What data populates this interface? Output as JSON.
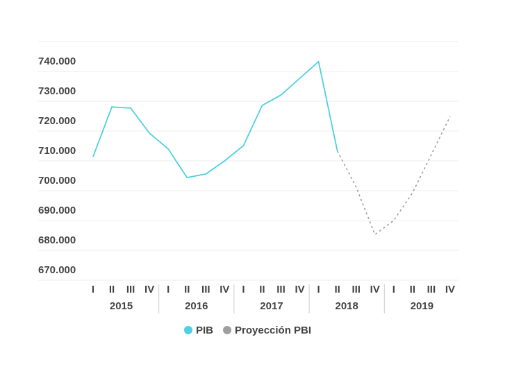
{
  "chart_data": {
    "type": "line",
    "categories": [
      "I",
      "II",
      "III",
      "IV",
      "I",
      "II",
      "III",
      "IV",
      "I",
      "II",
      "III",
      "IV",
      "I",
      "II",
      "III",
      "IV",
      "I",
      "II",
      "III",
      "IV"
    ],
    "years": [
      "2015",
      "2016",
      "2017",
      "2018",
      "2019"
    ],
    "series": [
      {
        "name": "PIB",
        "color": "#4dd0e1",
        "style": "solid",
        "values": [
          711400,
          728100,
          727700,
          719300,
          714000,
          704400,
          705600,
          710000,
          715100,
          728600,
          732100,
          737700,
          743300,
          713300,
          null,
          null,
          null,
          null,
          null,
          null
        ]
      },
      {
        "name": "Proyección PBI",
        "color": "#9e9e9e",
        "style": "dashed",
        "values": [
          null,
          null,
          null,
          null,
          null,
          null,
          null,
          null,
          null,
          null,
          null,
          null,
          null,
          713300,
          701200,
          685300,
          690000,
          699300,
          712100,
          724900
        ]
      }
    ],
    "ylim": [
      670000,
      750000
    ],
    "yticks": [
      {
        "value": 670000,
        "label": "670.000"
      },
      {
        "value": 680000,
        "label": "680.000"
      },
      {
        "value": 690000,
        "label": "690.000"
      },
      {
        "value": 700000,
        "label": "700.000"
      },
      {
        "value": 710000,
        "label": "710.000"
      },
      {
        "value": 720000,
        "label": "720.000"
      },
      {
        "value": 730000,
        "label": "730.000"
      },
      {
        "value": 740000,
        "label": "740.000"
      }
    ],
    "grid": true
  }
}
